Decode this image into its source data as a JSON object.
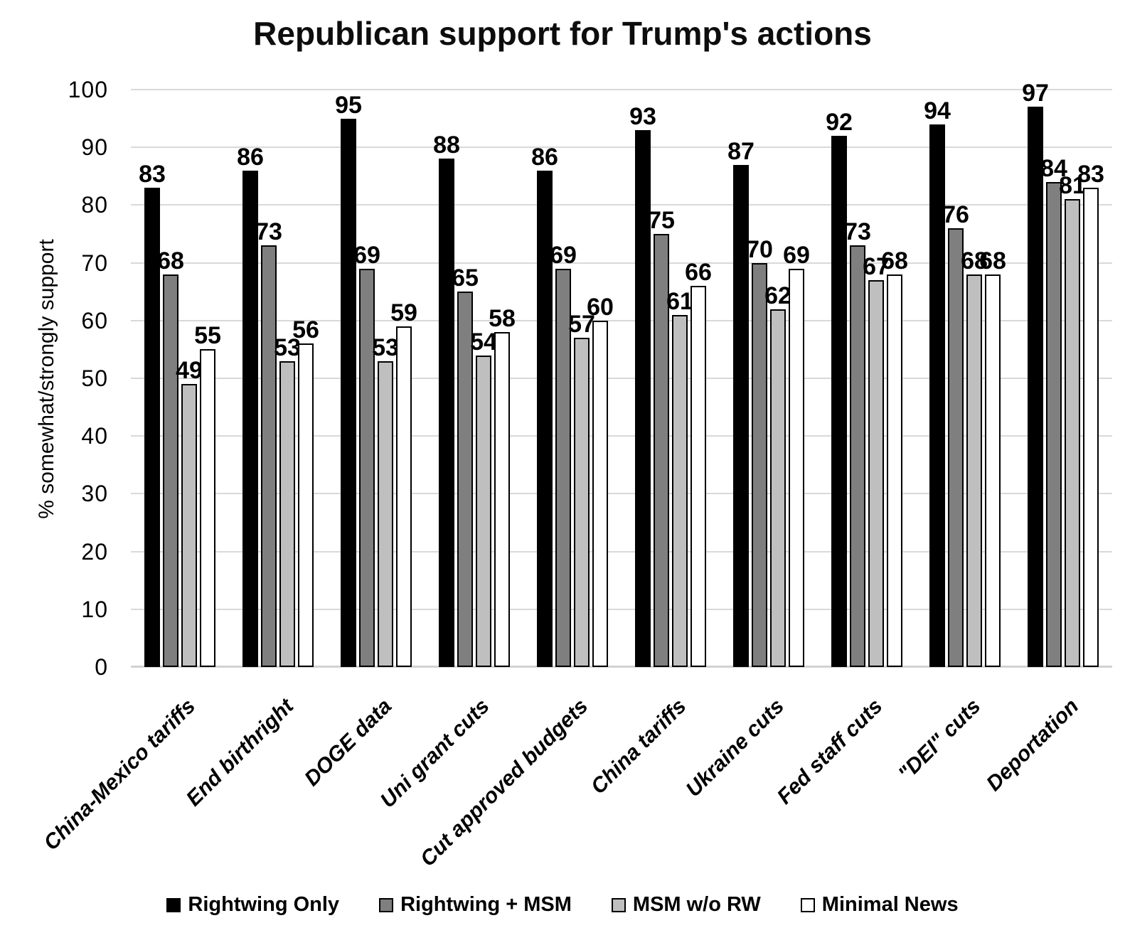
{
  "title": "Republican support for Trump's actions",
  "y_axis": {
    "title": "% somewhat/strongly support",
    "ticks": [
      0,
      10,
      20,
      30,
      40,
      50,
      60,
      70,
      80,
      90,
      100
    ]
  },
  "colors": {
    "gridline": "#d9d9d9",
    "axis_line": "#d2d2d2",
    "bar_border": "#000000",
    "text": "#000000"
  },
  "chart_data": {
    "type": "bar",
    "title": "Republican support for Trump's actions",
    "xlabel": "",
    "ylabel": "% somewhat/strongly support",
    "ylim": [
      0,
      100
    ],
    "y_tick_step": 10,
    "grid": true,
    "data_labels": true,
    "legend_position": "bottom",
    "categories": [
      "China-Mexico tariffs",
      "End birthright",
      "DOGE data",
      "Uni grant cuts",
      "Cut approved budgets",
      "China tariffs",
      "Ukraine cuts",
      "Fed staff cuts",
      "\"DEI\" cuts",
      "Deportation"
    ],
    "series": [
      {
        "name": "Rightwing Only",
        "color": "#000000",
        "values": [
          83,
          86,
          95,
          88,
          86,
          93,
          87,
          92,
          94,
          97
        ]
      },
      {
        "name": "Rightwing + MSM",
        "color": "#7f7f7f",
        "values": [
          68,
          73,
          69,
          65,
          69,
          75,
          70,
          73,
          76,
          84
        ]
      },
      {
        "name": "MSM w/o RW",
        "color": "#bfbfbf",
        "values": [
          49,
          53,
          53,
          54,
          57,
          61,
          62,
          67,
          68,
          81
        ]
      },
      {
        "name": "Minimal News",
        "color": "#ffffff",
        "values": [
          55,
          56,
          59,
          58,
          60,
          66,
          69,
          68,
          68,
          83
        ]
      }
    ]
  }
}
